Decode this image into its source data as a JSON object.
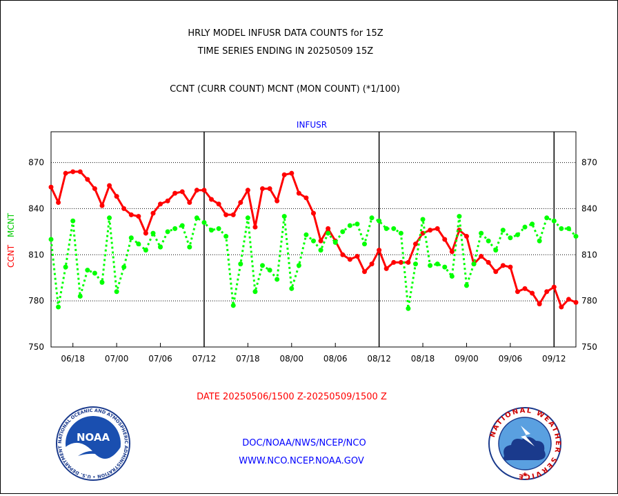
{
  "header": {
    "title_line1": "HRLY MODEL INFUSR DATA COUNTS for 15Z",
    "title_line2": "TIME SERIES ENDING IN 20250509 15Z",
    "subtitle": "CCNT (CURR COUNT) MCNT (MON COUNT) (*1/100)"
  },
  "footer": {
    "date_range": "DATE 20250506/1500 Z-20250509/1500 Z",
    "link1": "DOC/NOAA/NWS/NCEP/NCO",
    "link2": "WWW.NCO.NCEP.NOAA.GOV"
  },
  "logos": {
    "left_text": "NOAA",
    "left_ring_text": "NATIONAL OCEANIC AND ATMOSPHERIC ADMINISTRATION • U.S. DEPARTMENT OF COMMERCE",
    "right_ring_text": "NATIONAL WEATHER SERVICE"
  },
  "colors": {
    "ccnt": "#ff0000",
    "mcnt": "#00ff00",
    "label_blue": "#0000cc",
    "grid": "#000000"
  },
  "chart_data": {
    "type": "line",
    "title": "INFUSR",
    "ylabel_ccnt": "CCNT",
    "ylabel_mcnt": "MCNT",
    "ylim": [
      750,
      890
    ],
    "yticks": [
      750,
      780,
      810,
      840,
      870
    ],
    "ytick_labels": [
      "750",
      "780",
      "810",
      "840",
      "870"
    ],
    "xtick_labels": [
      "06/18",
      "07/00",
      "07/06",
      "07/12",
      "07/18",
      "08/00",
      "08/06",
      "08/12",
      "08/18",
      "09/00",
      "09/06",
      "09/12"
    ],
    "xlim": [
      0,
      72
    ],
    "day_markers": [
      21,
      45,
      69
    ],
    "grid": "horizontal dotted",
    "series": [
      {
        "name": "CCNT",
        "color": "#ff0000",
        "values": [
          854,
          844,
          863,
          864,
          864,
          859,
          853,
          842,
          855,
          848,
          840,
          836,
          835,
          824,
          837,
          843,
          845,
          850,
          851,
          844,
          852,
          852,
          846,
          843,
          836,
          836,
          844,
          852,
          828,
          853,
          853,
          845,
          862,
          863,
          850,
          847,
          837,
          819,
          827,
          819,
          810,
          807,
          809,
          799,
          804,
          813,
          801,
          805,
          805,
          805,
          817,
          824,
          826,
          827,
          820,
          812,
          826,
          822,
          804,
          809,
          805,
          799,
          803,
          802,
          786,
          788,
          785,
          778,
          786,
          789,
          776,
          781,
          779
        ]
      },
      {
        "name": "MCNT",
        "color": "#00ff00",
        "values": [
          820,
          776,
          802,
          832,
          783,
          800,
          798,
          792,
          834,
          786,
          802,
          821,
          817,
          813,
          824,
          815,
          825,
          827,
          829,
          815,
          834,
          831,
          826,
          827,
          822,
          777,
          804,
          834,
          786,
          803,
          800,
          794,
          835,
          788,
          803,
          823,
          819,
          813,
          824,
          818,
          825,
          829,
          830,
          817,
          834,
          832,
          827,
          827,
          824,
          775,
          804,
          833,
          803,
          804,
          802,
          796,
          835,
          790,
          804,
          824,
          819,
          813,
          826,
          821,
          823,
          828,
          830,
          819,
          834,
          832,
          827,
          827,
          822
        ]
      }
    ]
  }
}
